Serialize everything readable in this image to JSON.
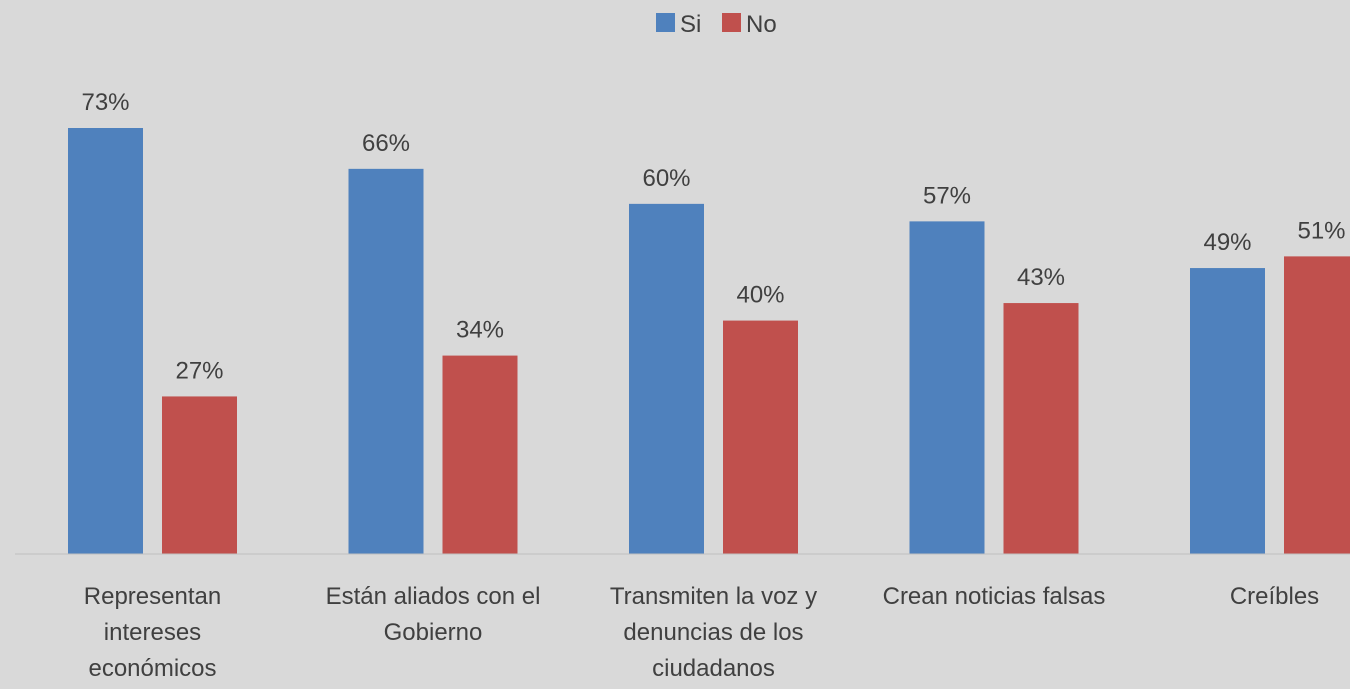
{
  "chart_data": {
    "type": "bar",
    "categories": [
      [
        "Representan",
        "intereses",
        "económicos"
      ],
      [
        "Están aliados con el",
        "Gobierno"
      ],
      [
        "Transmiten la voz y",
        "denuncias de los",
        "ciudadanos"
      ],
      [
        "Crean noticias falsas"
      ],
      [
        "Creíbles"
      ]
    ],
    "series": [
      {
        "name": "Si",
        "values": [
          73,
          66,
          60,
          57,
          49
        ],
        "labels": [
          "73%",
          "66%",
          "60%",
          "57%",
          "49%"
        ],
        "color": "#4f81bd"
      },
      {
        "name": "No",
        "values": [
          27,
          34,
          40,
          43,
          51
        ],
        "labels": [
          "27%",
          "34%",
          "40%",
          "43%",
          "51%"
        ],
        "color": "#c0504d"
      }
    ],
    "ylim": [
      0,
      73
    ],
    "grid": false,
    "legend_position": "top-center"
  }
}
